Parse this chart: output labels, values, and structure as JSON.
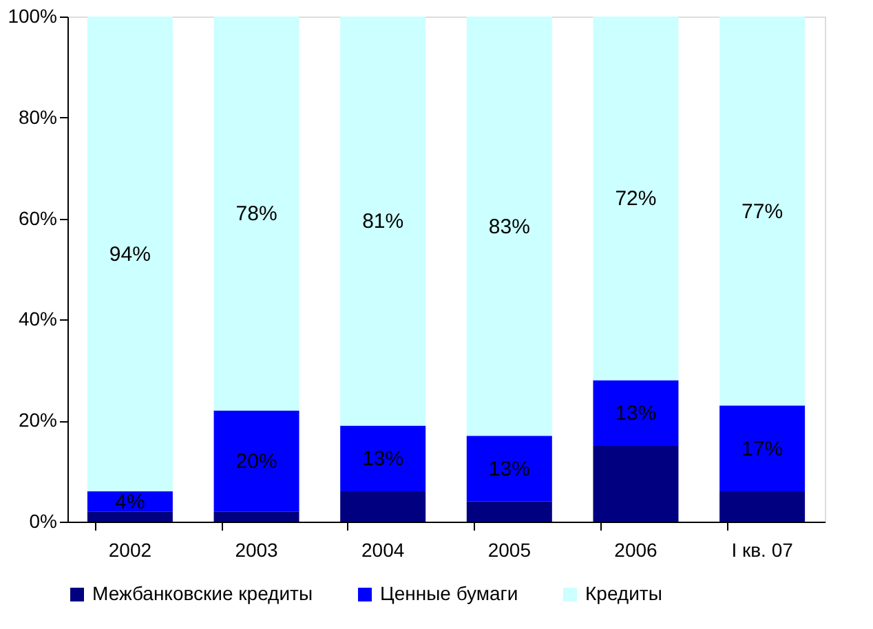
{
  "chart_data": {
    "type": "bar",
    "stacked": true,
    "categories": [
      "2002",
      "2003",
      "2004",
      "2005",
      "2006",
      "I кв. 07"
    ],
    "series": [
      {
        "name": "Межбанковские кредиты",
        "color": "#000080",
        "values": [
          2,
          2,
          6,
          4,
          15,
          6
        ],
        "value_labels": [
          null,
          null,
          null,
          null,
          null,
          null
        ]
      },
      {
        "name": "Ценные бумаги",
        "color": "#0000ff",
        "values": [
          4,
          20,
          13,
          13,
          13,
          17
        ],
        "value_labels": [
          "4%",
          "20%",
          "13%",
          "13%",
          "13%",
          "17%"
        ]
      },
      {
        "name": "Кредиты",
        "color": "#ccffff",
        "values": [
          94,
          78,
          81,
          83,
          72,
          77
        ],
        "value_labels": [
          "94%",
          "78%",
          "81%",
          "83%",
          "72%",
          "77%"
        ]
      }
    ],
    "ylim": [
      0,
      100
    ],
    "yticks": [
      {
        "value": 0,
        "label": "0%"
      },
      {
        "value": 20,
        "label": "20%"
      },
      {
        "value": 40,
        "label": "40%"
      },
      {
        "value": 60,
        "label": "60%"
      },
      {
        "value": 80,
        "label": "80%"
      },
      {
        "value": 100,
        "label": "100%"
      }
    ],
    "legend": "bottom",
    "grid": false
  }
}
